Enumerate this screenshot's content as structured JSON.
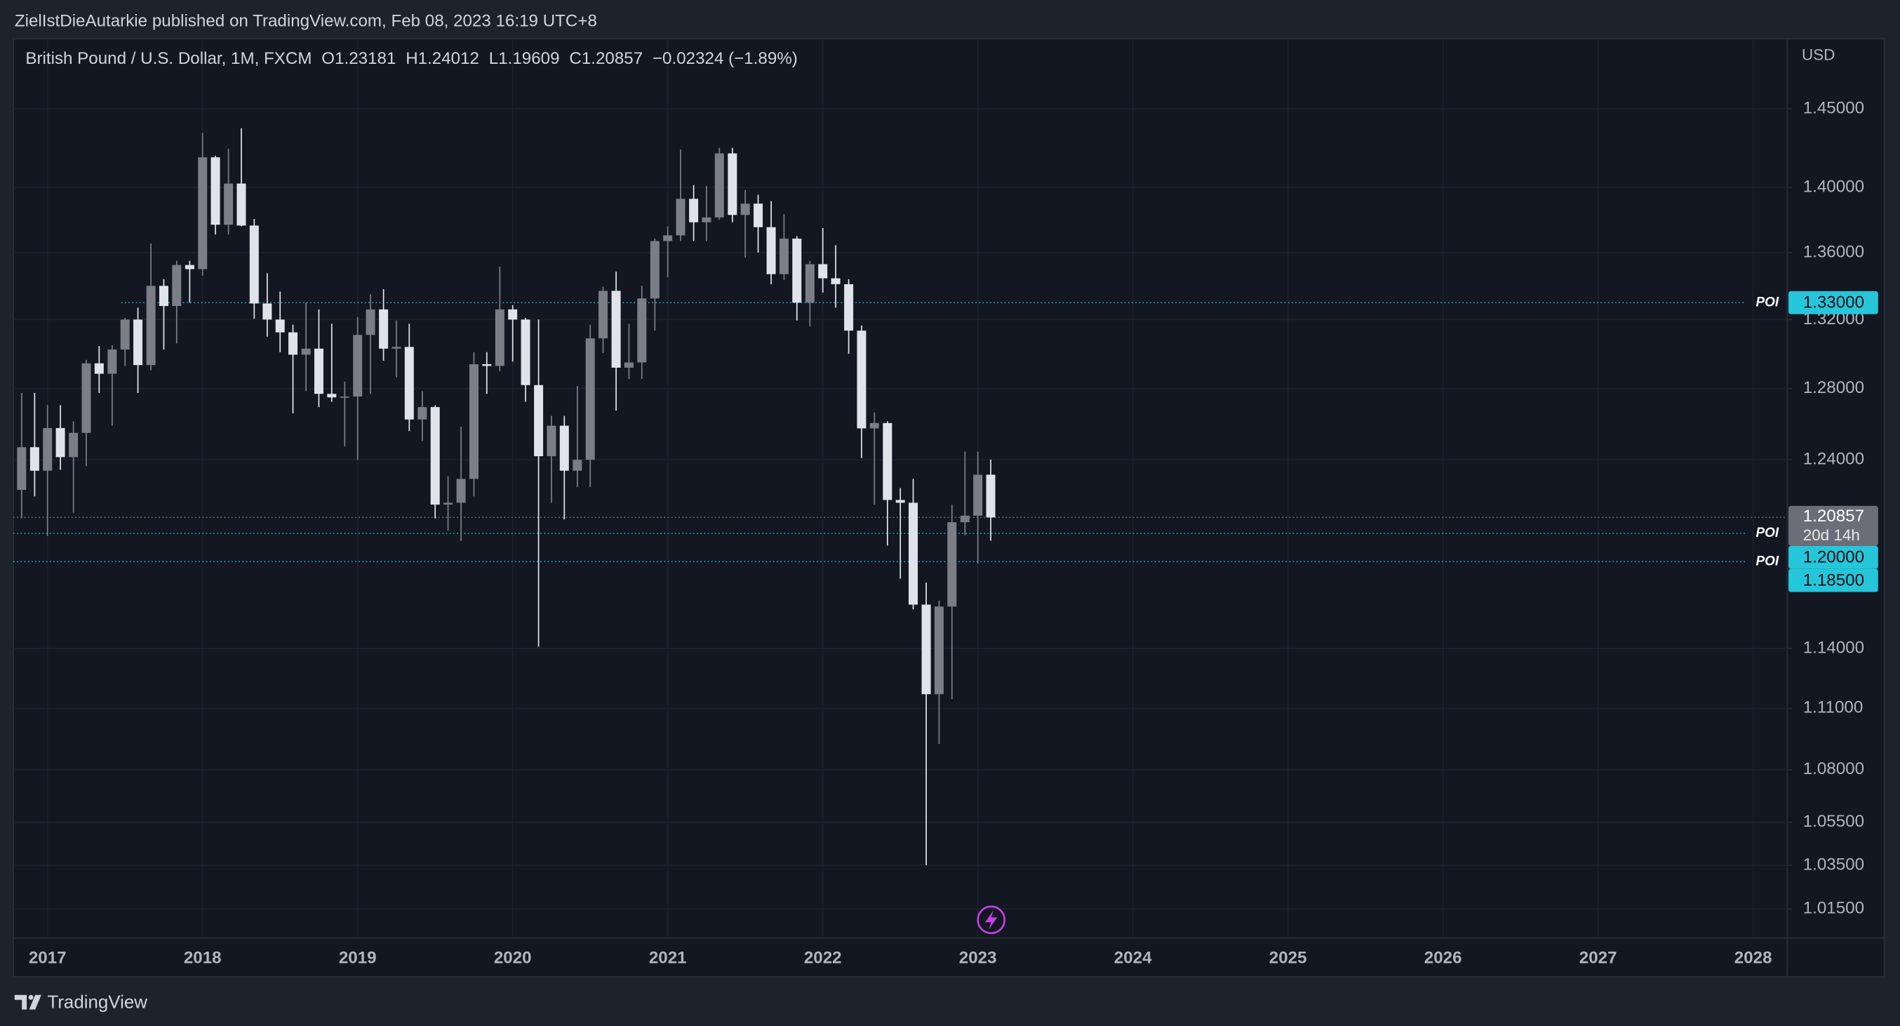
{
  "header": {
    "publisher": "ZielIstDieAutarkie published on TradingView.com, Feb 08, 2023 16:19 UTC+8"
  },
  "footer": {
    "brand": "TradingView"
  },
  "chart_data": {
    "type": "candlestick",
    "title": "British Pound / U.S. Dollar, 1M, FXCM",
    "ohlc_legend": [
      "O1.23181",
      "H1.24012",
      "L1.19609",
      "C1.20857",
      "−0.02324 (−1.89%)"
    ],
    "y_axis_label": "USD",
    "log_scale": true,
    "grid": true,
    "up_color": "#7b7e87",
    "down_color": "#e0e3eb",
    "xlim": [
      2016.78,
      2028.22
    ],
    "xticks": [
      2017,
      2018,
      2019,
      2020,
      2021,
      2022,
      2023,
      2024,
      2025,
      2026,
      2027,
      2028
    ],
    "ylim": [
      1.0025,
      1.496
    ],
    "yticks": [
      {
        "value": 1.45,
        "label": "1.45000"
      },
      {
        "value": 1.4,
        "label": "1.40000"
      },
      {
        "value": 1.36,
        "label": "1.36000"
      },
      {
        "value": 1.32,
        "label": "1.32000"
      },
      {
        "value": 1.28,
        "label": "1.28000"
      },
      {
        "value": 1.24,
        "label": "1.24000"
      },
      {
        "value": 1.14,
        "label": "1.14000"
      },
      {
        "value": 1.11,
        "label": "1.11000"
      },
      {
        "value": 1.08,
        "label": "1.08000"
      },
      {
        "value": 1.055,
        "label": "1.05500"
      },
      {
        "value": 1.035,
        "label": "1.03500"
      },
      {
        "value": 1.015,
        "label": "1.01500"
      }
    ],
    "x": [
      2016.833,
      2016.917,
      2017,
      2017.083,
      2017.167,
      2017.25,
      2017.333,
      2017.417,
      2017.5,
      2017.583,
      2017.667,
      2017.75,
      2017.833,
      2017.917,
      2018,
      2018.083,
      2018.167,
      2018.25,
      2018.333,
      2018.417,
      2018.5,
      2018.583,
      2018.667,
      2018.75,
      2018.833,
      2018.917,
      2019,
      2019.083,
      2019.167,
      2019.25,
      2019.333,
      2019.417,
      2019.5,
      2019.583,
      2019.667,
      2019.75,
      2019.833,
      2019.917,
      2020,
      2020.083,
      2020.167,
      2020.25,
      2020.333,
      2020.417,
      2020.5,
      2020.583,
      2020.667,
      2020.75,
      2020.833,
      2020.917,
      2021,
      2021.083,
      2021.167,
      2021.25,
      2021.333,
      2021.417,
      2021.5,
      2021.583,
      2021.667,
      2021.75,
      2021.833,
      2021.917,
      2022,
      2022.083,
      2022.167,
      2022.25,
      2022.333,
      2022.417,
      2022.5,
      2022.583,
      2022.667,
      2022.75,
      2022.833,
      2022.917,
      2023,
      2023.083
    ],
    "open": [
      1.2235,
      1.247,
      1.234,
      1.2577,
      1.2415,
      1.255,
      1.2945,
      1.2885,
      1.3025,
      1.32,
      1.2935,
      1.34,
      1.328,
      1.3525,
      1.35,
      1.419,
      1.377,
      1.4025,
      1.3765,
      1.3295,
      1.32,
      1.3125,
      1.2995,
      1.303,
      1.277,
      1.275,
      1.2755,
      1.311,
      1.326,
      1.303,
      1.304,
      1.2625,
      1.2695,
      1.2155,
      1.2165,
      1.2295,
      1.294,
      1.293,
      1.326,
      1.32,
      1.282,
      1.242,
      1.259,
      1.234,
      1.24,
      1.309,
      1.337,
      1.292,
      1.295,
      1.3325,
      1.367,
      1.3705,
      1.393,
      1.3785,
      1.3815,
      1.4215,
      1.383,
      1.39,
      1.3755,
      1.347,
      1.3685,
      1.33,
      1.353,
      1.3445,
      1.341,
      1.3135,
      1.2575,
      1.2605,
      1.218,
      1.2165,
      1.1625,
      1.117,
      1.1615,
      1.206,
      1.2095,
      1.23181
    ],
    "high": [
      1.2775,
      1.2775,
      1.2706,
      1.2706,
      1.2615,
      1.2965,
      1.3045,
      1.305,
      1.321,
      1.327,
      1.3655,
      1.344,
      1.355,
      1.355,
      1.4345,
      1.42,
      1.4245,
      1.4375,
      1.3805,
      1.3475,
      1.3365,
      1.317,
      1.33,
      1.326,
      1.3175,
      1.284,
      1.3215,
      1.335,
      1.338,
      1.3195,
      1.3175,
      1.2785,
      1.2705,
      1.231,
      1.2585,
      1.301,
      1.301,
      1.3515,
      1.3285,
      1.321,
      1.32,
      1.2645,
      1.2645,
      1.2815,
      1.317,
      1.3395,
      1.3485,
      1.3175,
      1.34,
      1.3685,
      1.376,
      1.424,
      1.4015,
      1.401,
      1.425,
      1.425,
      1.3985,
      1.3955,
      1.3915,
      1.3835,
      1.37,
      1.355,
      1.375,
      1.3645,
      1.344,
      1.3165,
      1.2665,
      1.2615,
      1.2245,
      1.2295,
      1.174,
      1.1645,
      1.2155,
      1.2445,
      1.2445,
      1.24012
    ],
    "low": [
      1.208,
      1.22,
      1.1986,
      1.2345,
      1.211,
      1.2365,
      1.2775,
      1.259,
      1.293,
      1.2775,
      1.2905,
      1.3025,
      1.306,
      1.33,
      1.346,
      1.371,
      1.371,
      1.376,
      1.3205,
      1.31,
      1.301,
      1.266,
      1.2785,
      1.2695,
      1.2725,
      1.2475,
      1.24,
      1.277,
      1.296,
      1.2865,
      1.256,
      1.2505,
      1.208,
      1.2015,
      1.196,
      1.22,
      1.277,
      1.29,
      1.2955,
      1.2725,
      1.141,
      1.2165,
      1.2075,
      1.225,
      1.225,
      1.3005,
      1.2675,
      1.2855,
      1.2855,
      1.3135,
      1.345,
      1.367,
      1.367,
      1.367,
      1.38,
      1.3785,
      1.357,
      1.36,
      1.341,
      1.3435,
      1.3195,
      1.316,
      1.336,
      1.327,
      1.3,
      1.241,
      1.2155,
      1.1935,
      1.176,
      1.16,
      1.035,
      1.0925,
      1.1145,
      1.199,
      1.184,
      1.19609
    ],
    "close": [
      1.247,
      1.234,
      1.2577,
      1.2415,
      1.255,
      1.2945,
      1.2885,
      1.3025,
      1.32,
      1.2935,
      1.34,
      1.328,
      1.3525,
      1.35,
      1.419,
      1.377,
      1.4025,
      1.3765,
      1.3295,
      1.32,
      1.3125,
      1.2995,
      1.303,
      1.277,
      1.275,
      1.2755,
      1.311,
      1.326,
      1.303,
      1.304,
      1.2625,
      1.2695,
      1.2155,
      1.2165,
      1.2295,
      1.294,
      1.293,
      1.326,
      1.32,
      1.282,
      1.242,
      1.259,
      1.234,
      1.24,
      1.309,
      1.337,
      1.292,
      1.295,
      1.3325,
      1.367,
      1.3705,
      1.393,
      1.3785,
      1.3815,
      1.4215,
      1.383,
      1.39,
      1.3755,
      1.347,
      1.3685,
      1.33,
      1.353,
      1.3445,
      1.341,
      1.3135,
      1.2575,
      1.2605,
      1.218,
      1.2165,
      1.1625,
      1.117,
      1.1615,
      1.206,
      1.2095,
      1.2318,
      1.20857
    ],
    "horizontal_lines": [
      {
        "label": "POI",
        "value": 1.33,
        "value_label": "1.33000"
      },
      {
        "label": "POI",
        "value": 1.2,
        "value_label": "1.20000"
      },
      {
        "label": "POI",
        "value": 1.185,
        "value_label": "1.18500"
      }
    ],
    "line_color": "#26c6da",
    "last_price": {
      "value": 1.20857,
      "label": "1.20857",
      "countdown": "20d 14h",
      "color": "#6b6e79"
    }
  }
}
